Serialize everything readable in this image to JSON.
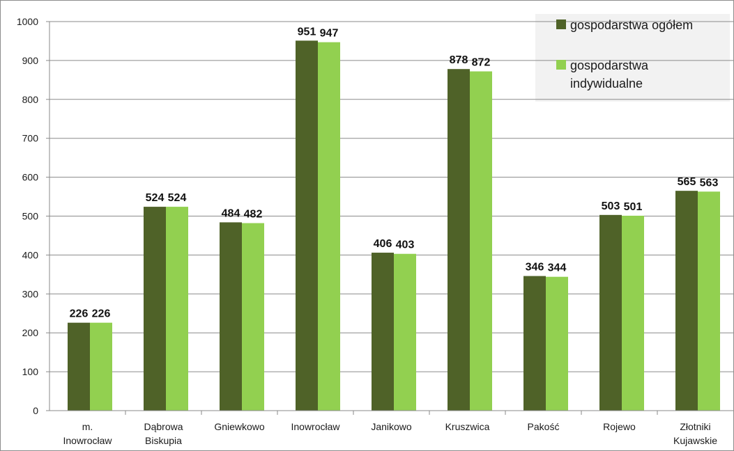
{
  "chart_data": {
    "type": "bar",
    "categories": [
      [
        "m.",
        "Inowrocław"
      ],
      [
        "Dąbrowa",
        "Biskupia"
      ],
      [
        "Gniewkowo"
      ],
      [
        "Inowrocław"
      ],
      [
        "Janikowo"
      ],
      [
        "Kruszwica"
      ],
      [
        "Pakość"
      ],
      [
        "Rojewo"
      ],
      [
        "Złotniki",
        "Kujawskie"
      ]
    ],
    "series": [
      {
        "name": "gospodarstwa ogółem",
        "legend_lines": [
          "gospodarstwa ogółem"
        ],
        "color": "#4f6228",
        "values": [
          226,
          524,
          484,
          951,
          406,
          878,
          346,
          503,
          565
        ]
      },
      {
        "name": "gospodarstwa indywidualne",
        "legend_lines": [
          "gospodarstwa",
          "indywidualne"
        ],
        "color": "#92d050",
        "values": [
          226,
          524,
          482,
          947,
          403,
          872,
          344,
          501,
          563
        ]
      }
    ],
    "ylim": [
      0,
      1000
    ],
    "yticks": [
      0,
      100,
      200,
      300,
      400,
      500,
      600,
      700,
      800,
      900,
      1000
    ],
    "grid": true,
    "data_labels": true,
    "legend_position": "top-right"
  }
}
